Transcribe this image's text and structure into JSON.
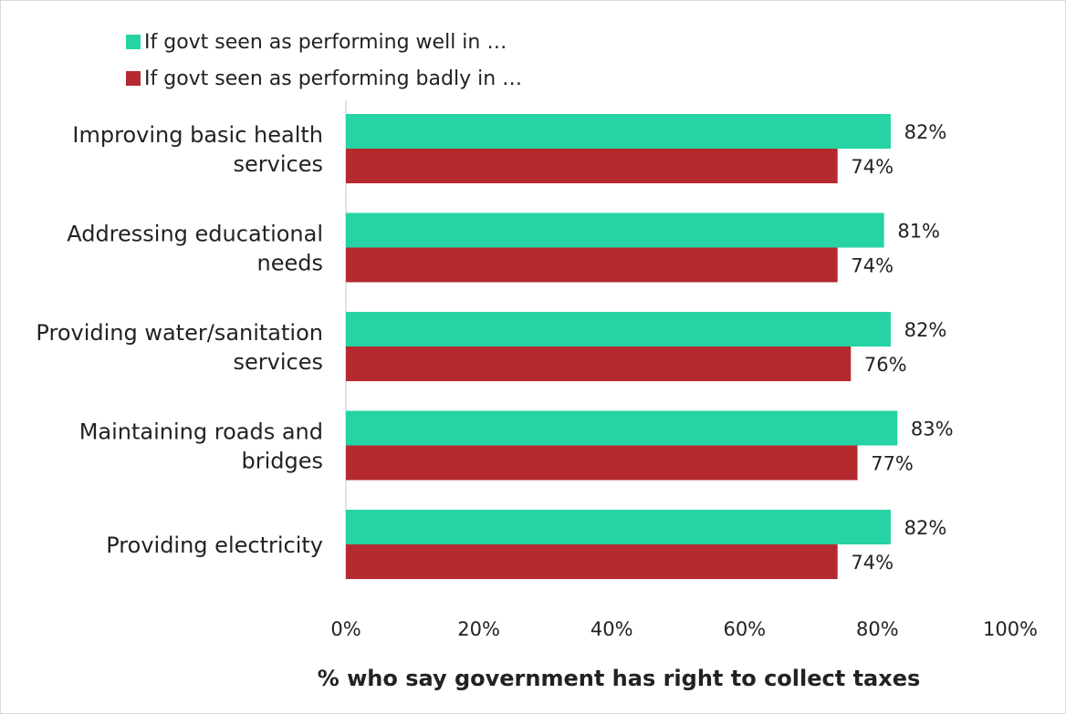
{
  "chart_data": {
    "type": "bar",
    "orientation": "horizontal",
    "categories": [
      [
        "Improving basic health",
        "services"
      ],
      [
        "Addressing educational",
        "needs"
      ],
      [
        "Providing water/sanitation",
        "services"
      ],
      [
        "Maintaining roads and",
        "bridges"
      ],
      [
        "Providing electricity"
      ]
    ],
    "series": [
      {
        "name": "If govt seen as performing well in …",
        "color": "#26d3a3",
        "values": [
          82,
          81,
          82,
          83,
          82
        ]
      },
      {
        "name": "If govt seen as performing badly in …",
        "color": "#b42a2f",
        "values": [
          74,
          74,
          76,
          77,
          74
        ]
      }
    ],
    "value_suffix": "%",
    "xlim": [
      0,
      100
    ],
    "xticks": [
      0,
      20,
      40,
      60,
      80,
      100
    ],
    "xlabel": "% who say government has right to collect taxes",
    "ylabel": "",
    "legend_position": "top-left",
    "grid": false
  }
}
